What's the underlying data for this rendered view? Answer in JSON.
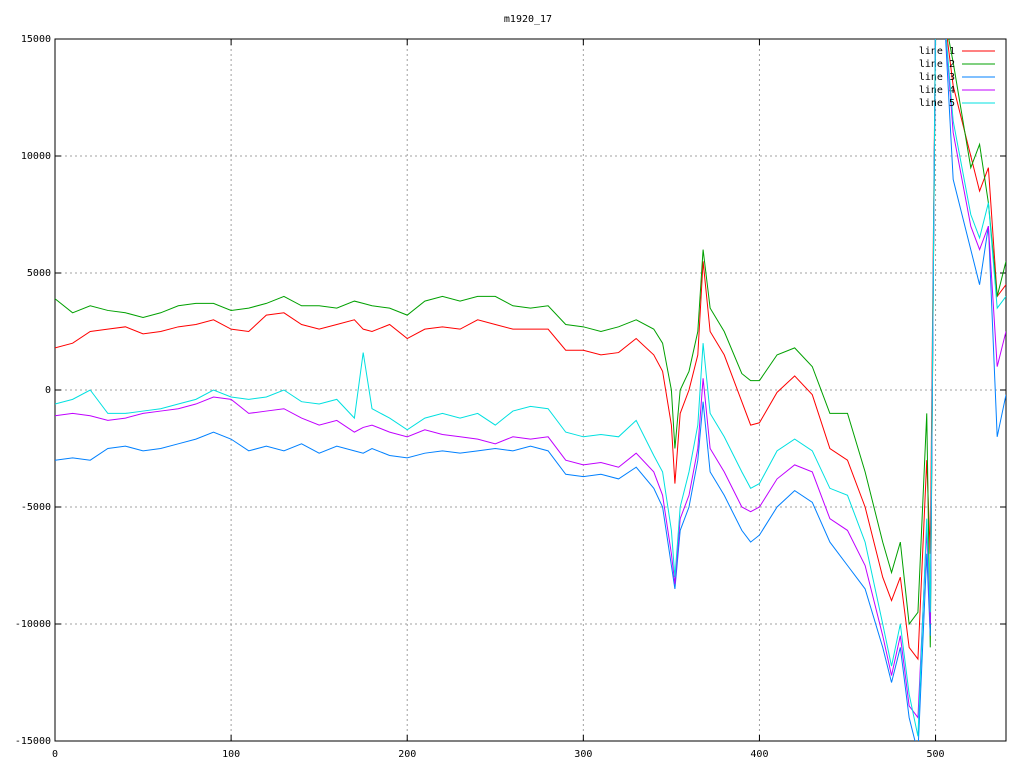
{
  "chart_data": {
    "type": "line",
    "title": "m1920_17",
    "x": [
      0,
      10,
      20,
      30,
      40,
      50,
      60,
      70,
      80,
      90,
      100,
      110,
      120,
      130,
      140,
      150,
      160,
      170,
      175,
      180,
      190,
      200,
      210,
      220,
      230,
      240,
      250,
      260,
      270,
      280,
      290,
      300,
      310,
      320,
      330,
      340,
      345,
      350,
      352,
      355,
      360,
      365,
      368,
      372,
      380,
      390,
      395,
      400,
      410,
      420,
      430,
      440,
      450,
      460,
      470,
      475,
      480,
      485,
      490,
      495,
      497,
      500,
      505,
      510,
      520,
      525,
      530,
      535,
      540
    ],
    "series": [
      {
        "name": "line 1",
        "color": "#ff0000",
        "values": [
          1800,
          2000,
          2500,
          2600,
          2700,
          2400,
          2500,
          2700,
          2800,
          3000,
          2600,
          2500,
          3200,
          3300,
          2800,
          2600,
          2800,
          3000,
          2600,
          2500,
          2800,
          2200,
          2600,
          2700,
          2600,
          3000,
          2800,
          2600,
          2600,
          2600,
          1700,
          1700,
          1500,
          1600,
          2200,
          1500,
          800,
          -1500,
          -4000,
          -1000,
          0,
          1500,
          5500,
          2500,
          1500,
          -500,
          -1500,
          -1400,
          -100,
          600,
          -200,
          -2500,
          -3000,
          -5000,
          -8000,
          -9000,
          -8000,
          -11000,
          -11500,
          -3000,
          -7000,
          16000,
          16000,
          13000,
          10000,
          8500,
          9500,
          4000,
          4500
        ]
      },
      {
        "name": "line 2",
        "color": "#00a000",
        "values": [
          3900,
          3300,
          3600,
          3400,
          3300,
          3100,
          3300,
          3600,
          3700,
          3700,
          3400,
          3500,
          3700,
          4000,
          3600,
          3600,
          3500,
          3800,
          3700,
          3600,
          3500,
          3200,
          3800,
          4000,
          3800,
          4000,
          4000,
          3600,
          3500,
          3600,
          2800,
          2700,
          2500,
          2700,
          3000,
          2600,
          2000,
          0,
          -2500,
          0,
          800,
          2500,
          6000,
          3500,
          2500,
          700,
          400,
          400,
          1500,
          1800,
          1000,
          -1000,
          -1000,
          -3500,
          -6500,
          -7800,
          -6500,
          -10000,
          -9500,
          -1000,
          -11000,
          16000,
          16000,
          14000,
          9500,
          10500,
          8000,
          4000,
          5500
        ]
      },
      {
        "name": "line 3",
        "color": "#0080ff",
        "values": [
          -3000,
          -2900,
          -3000,
          -2500,
          -2400,
          -2600,
          -2500,
          -2300,
          -2100,
          -1800,
          -2100,
          -2600,
          -2400,
          -2600,
          -2300,
          -2700,
          -2400,
          -2600,
          -2700,
          -2500,
          -2800,
          -2900,
          -2700,
          -2600,
          -2700,
          -2600,
          -2500,
          -2600,
          -2400,
          -2600,
          -3600,
          -3700,
          -3600,
          -3800,
          -3300,
          -4200,
          -5000,
          -7500,
          -8500,
          -6000,
          -5000,
          -3000,
          -500,
          -3500,
          -4500,
          -6000,
          -6500,
          -6200,
          -5000,
          -4300,
          -4800,
          -6500,
          -7500,
          -8500,
          -11000,
          -12500,
          -11000,
          -14000,
          -15500,
          -7000,
          -10500,
          16000,
          16000,
          9000,
          6000,
          4500,
          7000,
          -2000,
          -200
        ]
      },
      {
        "name": "line 4",
        "color": "#c000ff",
        "values": [
          -1100,
          -1000,
          -1100,
          -1300,
          -1200,
          -1000,
          -900,
          -800,
          -600,
          -300,
          -400,
          -1000,
          -900,
          -800,
          -1200,
          -1500,
          -1300,
          -1800,
          -1600,
          -1500,
          -1800,
          -2000,
          -1700,
          -1900,
          -2000,
          -2100,
          -2300,
          -2000,
          -2100,
          -2000,
          -3000,
          -3200,
          -3100,
          -3300,
          -2700,
          -3500,
          -4500,
          -7000,
          -8300,
          -5500,
          -4500,
          -2500,
          500,
          -2500,
          -3500,
          -5000,
          -5200,
          -5000,
          -3800,
          -3200,
          -3500,
          -5500,
          -6000,
          -7500,
          -10500,
          -12200,
          -10500,
          -13500,
          -14000,
          -6000,
          -10000,
          16000,
          16000,
          11000,
          7000,
          6000,
          7000,
          1000,
          2500
        ]
      },
      {
        "name": "line 5",
        "color": "#00e0e0",
        "values": [
          -600,
          -400,
          0,
          -1000,
          -1000,
          -900,
          -800,
          -600,
          -400,
          0,
          -300,
          -400,
          -300,
          0,
          -500,
          -600,
          -400,
          -1200,
          1600,
          -800,
          -1200,
          -1700,
          -1200,
          -1000,
          -1200,
          -1000,
          -1500,
          -900,
          -700,
          -800,
          -1800,
          -2000,
          -1900,
          -2000,
          -1300,
          -2800,
          -3500,
          -6000,
          -8000,
          -5000,
          -3500,
          -1500,
          2000,
          -1000,
          -2000,
          -3500,
          -4200,
          -4000,
          -2600,
          -2100,
          -2600,
          -4200,
          -4500,
          -6500,
          -10000,
          -11800,
          -10000,
          -13000,
          -14800,
          -5500,
          -9500,
          16000,
          16000,
          11500,
          7500,
          6500,
          8000,
          3500,
          4000
        ]
      }
    ],
    "xlim": [
      0,
      540
    ],
    "ylim": [
      -15000,
      15000
    ],
    "xticks": [
      0,
      100,
      200,
      300,
      400,
      500
    ],
    "yticks": [
      -15000,
      -10000,
      -5000,
      0,
      5000,
      10000,
      15000
    ],
    "grid": true,
    "legend": "top-right"
  }
}
